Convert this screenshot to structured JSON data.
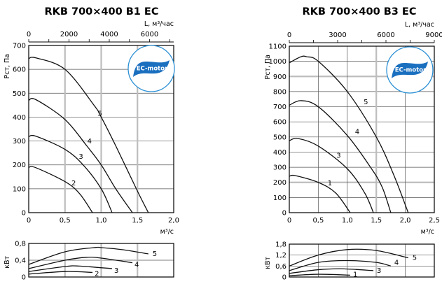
{
  "chart_data": [
    {
      "type": "line",
      "title": "RKB 700×400 B1 EC",
      "logo_text": "EC-motor",
      "pressure": {
        "ylabel": "Pст, Па",
        "xlabel": "м³/с",
        "top_xlabel": "L, м³/час",
        "xlim": [
          0,
          2.0
        ],
        "ylim": [
          0,
          700
        ],
        "x_ticks": [
          "0",
          "0,5",
          "1,0",
          "1,5",
          "2,0"
        ],
        "x_tick_values": [
          0,
          0.5,
          1.0,
          1.5,
          2.0
        ],
        "y_ticks": [
          "0",
          "100",
          "200",
          "300",
          "400",
          "500",
          "600",
          "700"
        ],
        "y_tick_values": [
          0,
          100,
          200,
          300,
          400,
          500,
          600,
          700
        ],
        "top_ticks": [
          "0",
          "2000",
          "4000",
          "6000"
        ],
        "top_tick_values": [
          0,
          2000,
          4000,
          6000
        ],
        "top_max": 7200,
        "grid": true,
        "series": [
          {
            "name": "5",
            "x": [
              0,
              0.1,
              0.5,
              0.9,
              1.0,
              1.2,
              1.5,
              1.65
            ],
            "y": [
              645,
              648,
              600,
              450,
              400,
              280,
              90,
              0
            ]
          },
          {
            "name": "4",
            "x": [
              0,
              0.1,
              0.5,
              0.8,
              1.0,
              1.2,
              1.43
            ],
            "y": [
              470,
              473,
              390,
              280,
              200,
              100,
              0
            ]
          },
          {
            "name": "3",
            "x": [
              0,
              0.1,
              0.5,
              0.75,
              1.0,
              1.15
            ],
            "y": [
              318,
              320,
              265,
              200,
              100,
              0
            ]
          },
          {
            "name": "2",
            "x": [
              0,
              0.1,
              0.5,
              0.7,
              0.88
            ],
            "y": [
              190,
              188,
              130,
              80,
              0
            ]
          }
        ]
      },
      "power": {
        "ylabel": "кВт",
        "ylim": [
          0,
          0.8
        ],
        "y_ticks": [
          "0",
          "0,4",
          "0,8"
        ],
        "y_tick_values": [
          0,
          0.4,
          0.8
        ],
        "series": [
          {
            "name": "5",
            "x": [
              0,
              0.5,
              0.9,
              1.0,
              1.3,
              1.65
            ],
            "y": [
              0.3,
              0.6,
              0.7,
              0.7,
              0.65,
              0.55
            ]
          },
          {
            "name": "4",
            "x": [
              0,
              0.5,
              0.8,
              1.0,
              1.43
            ],
            "y": [
              0.2,
              0.4,
              0.47,
              0.45,
              0.34
            ]
          },
          {
            "name": "3",
            "x": [
              0,
              0.5,
              0.7,
              1.15
            ],
            "y": [
              0.13,
              0.25,
              0.26,
              0.2
            ]
          },
          {
            "name": "2",
            "x": [
              0,
              0.5,
              0.88
            ],
            "y": [
              0.07,
              0.13,
              0.11
            ]
          }
        ]
      }
    },
    {
      "type": "line",
      "title": "RKB 700×400 B3 EC",
      "logo_text": "EC-motor",
      "pressure": {
        "ylabel": "Pст, Па",
        "xlabel": "м³/с",
        "top_xlabel": "L, м³/час",
        "xlim": [
          0,
          2.5
        ],
        "ylim": [
          0,
          1100
        ],
        "x_ticks": [
          "0",
          "0,5",
          "1,0",
          "1,5",
          "2,0",
          "2,5"
        ],
        "x_tick_values": [
          0,
          0.5,
          1.0,
          1.5,
          2.0,
          2.5
        ],
        "y_ticks": [
          "0",
          "100",
          "200",
          "300",
          "400",
          "500",
          "600",
          "700",
          "800",
          "900",
          "1000",
          "1100"
        ],
        "y_tick_values": [
          0,
          100,
          200,
          300,
          400,
          500,
          600,
          700,
          800,
          900,
          1000,
          1100
        ],
        "top_ticks": [
          "0",
          "3000",
          "6000",
          "9000"
        ],
        "top_tick_values": [
          0,
          3000,
          6000,
          9000
        ],
        "top_max": 9000,
        "grid": true,
        "series": [
          {
            "name": "5",
            "x": [
              0,
              0.2,
              0.3,
              0.5,
              1.0,
              1.5,
              1.8,
              2.05
            ],
            "y": [
              990,
              1030,
              1030,
              1000,
              800,
              500,
              250,
              0
            ]
          },
          {
            "name": "4",
            "x": [
              0,
              0.2,
              0.5,
              1.0,
              1.4,
              1.6,
              1.75
            ],
            "y": [
              710,
              740,
              700,
              510,
              300,
              170,
              0
            ]
          },
          {
            "name": "3",
            "x": [
              0,
              0.15,
              0.5,
              1.0,
              1.3,
              1.45
            ],
            "y": [
              475,
              490,
              440,
              290,
              130,
              0
            ]
          },
          {
            "name": "1",
            "x": [
              0,
              0.1,
              0.5,
              0.8,
              1.05
            ],
            "y": [
              240,
              245,
              200,
              130,
              0
            ]
          }
        ]
      },
      "power": {
        "ylabel": "кВт",
        "ylim": [
          0,
          1.8
        ],
        "y_ticks": [
          "0",
          "0,6",
          "1,2",
          "1,8"
        ],
        "y_tick_values": [
          0,
          0.6,
          1.2,
          1.8
        ],
        "series": [
          {
            "name": "5",
            "x": [
              0,
              0.5,
              1.0,
              1.5,
              2.05
            ],
            "y": [
              0.6,
              1.2,
              1.5,
              1.45,
              1.05
            ]
          },
          {
            "name": "4",
            "x": [
              0,
              0.5,
              1.0,
              1.5,
              1.75
            ],
            "y": [
              0.35,
              0.8,
              0.9,
              0.8,
              0.6
            ]
          },
          {
            "name": "3",
            "x": [
              0,
              0.5,
              0.9,
              1.45
            ],
            "y": [
              0.2,
              0.4,
              0.45,
              0.35
            ]
          },
          {
            "name": "1",
            "x": [
              0,
              0.5,
              1.05
            ],
            "y": [
              0.07,
              0.15,
              0.1
            ]
          }
        ]
      }
    }
  ]
}
